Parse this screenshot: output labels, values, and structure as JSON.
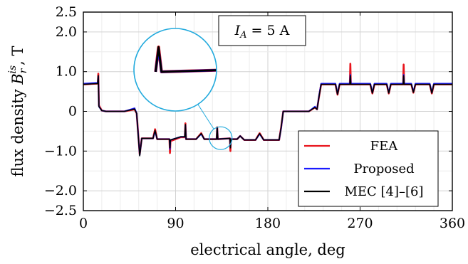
{
  "chart_data": {
    "type": "line",
    "xlabel": "electrical angle, deg",
    "ylabel": "flux density B_r^{is}, T",
    "ylabel_parts": {
      "main": "flux density ",
      "sym": "B",
      "sub": "r",
      "sup": "is",
      "tail": ", T"
    },
    "xlim": [
      0,
      360
    ],
    "ylim": [
      -2.5,
      2.5
    ],
    "xticks": [
      0,
      90,
      180,
      270,
      360
    ],
    "xtick_labels": [
      "0",
      "90",
      "180",
      "270",
      "360"
    ],
    "yticks": [
      2.5,
      2.0,
      1.0,
      0,
      -1.0,
      -2.0,
      -2.5
    ],
    "ytick_labels": [
      "2.5",
      "2.0",
      "1.0",
      "0",
      "−1.0",
      "−2.0",
      "−2.5"
    ],
    "grid": true,
    "legend_position": "bottom-right",
    "annotation": "I_A = 5 A",
    "annotation_parts": {
      "sym": "I",
      "sub": "A",
      "rest": " = 5 A"
    },
    "series": [
      {
        "name": "FEA",
        "color": "#e8141c",
        "points": [
          [
            0,
            0.68
          ],
          [
            14,
            0.7
          ],
          [
            14.6,
            0.95
          ],
          [
            15.2,
            0.15
          ],
          [
            18,
            0.02
          ],
          [
            22,
            0.0
          ],
          [
            40,
            0.0
          ],
          [
            50,
            0.05
          ],
          [
            52,
            -0.05
          ],
          [
            55,
            -1.08
          ],
          [
            57,
            -0.68
          ],
          [
            68,
            -0.68
          ],
          [
            70,
            -0.45
          ],
          [
            72,
            -0.7
          ],
          [
            84,
            -0.7
          ],
          [
            84.5,
            -1.05
          ],
          [
            85,
            -0.75
          ],
          [
            95,
            -0.65
          ],
          [
            99,
            -0.65
          ],
          [
            99.6,
            -0.3
          ],
          [
            100.2,
            -0.7
          ],
          [
            110,
            -0.7
          ],
          [
            115,
            -0.55
          ],
          [
            118,
            -0.7
          ],
          [
            130,
            -0.7
          ],
          [
            130.6,
            -0.4
          ],
          [
            131.2,
            -0.7
          ],
          [
            143,
            -0.68
          ],
          [
            143.5,
            -1.0
          ],
          [
            144,
            -0.7
          ],
          [
            150,
            -0.7
          ],
          [
            153,
            -0.62
          ],
          [
            157,
            -0.72
          ],
          [
            168,
            -0.72
          ],
          [
            172,
            -0.55
          ],
          [
            176,
            -0.72
          ],
          [
            185,
            -0.72
          ],
          [
            191,
            -0.72
          ],
          [
            193,
            -0.4
          ],
          [
            195,
            0.0
          ],
          [
            220,
            0.0
          ],
          [
            226,
            0.1
          ],
          [
            228,
            0.05
          ],
          [
            230,
            0.38
          ],
          [
            232,
            0.68
          ],
          [
            246,
            0.68
          ],
          [
            248,
            0.42
          ],
          [
            250,
            0.68
          ],
          [
            260,
            0.68
          ],
          [
            260.5,
            1.2
          ],
          [
            261,
            0.68
          ],
          [
            270,
            0.68
          ],
          [
            280,
            0.68
          ],
          [
            282,
            0.45
          ],
          [
            284,
            0.68
          ],
          [
            296,
            0.68
          ],
          [
            298,
            0.45
          ],
          [
            300,
            0.68
          ],
          [
            312,
            0.68
          ],
          [
            312.5,
            1.18
          ],
          [
            313,
            0.68
          ],
          [
            320,
            0.68
          ],
          [
            322,
            0.47
          ],
          [
            324,
            0.68
          ],
          [
            338,
            0.68
          ],
          [
            340,
            0.45
          ],
          [
            342,
            0.68
          ],
          [
            350,
            0.68
          ],
          [
            360,
            0.68
          ]
        ]
      },
      {
        "name": "Proposed",
        "color": "#1a1aff",
        "points": [
          [
            0,
            0.7
          ],
          [
            14,
            0.72
          ],
          [
            14.6,
            0.88
          ],
          [
            15.2,
            0.12
          ],
          [
            18,
            0.02
          ],
          [
            22,
            0.0
          ],
          [
            40,
            0.0
          ],
          [
            50,
            0.08
          ],
          [
            52,
            -0.05
          ],
          [
            55,
            -1.1
          ],
          [
            57,
            -0.68
          ],
          [
            68,
            -0.68
          ],
          [
            70,
            -0.5
          ],
          [
            72,
            -0.7
          ],
          [
            84,
            -0.7
          ],
          [
            84.5,
            -0.95
          ],
          [
            85,
            -0.72
          ],
          [
            95,
            -0.64
          ],
          [
            99,
            -0.64
          ],
          [
            99.6,
            -0.35
          ],
          [
            100.2,
            -0.7
          ],
          [
            110,
            -0.7
          ],
          [
            115,
            -0.57
          ],
          [
            118,
            -0.7
          ],
          [
            130,
            -0.7
          ],
          [
            130.6,
            -0.42
          ],
          [
            131.2,
            -0.7
          ],
          [
            143,
            -0.68
          ],
          [
            143.5,
            -0.9
          ],
          [
            144,
            -0.7
          ],
          [
            150,
            -0.7
          ],
          [
            153,
            -0.62
          ],
          [
            157,
            -0.72
          ],
          [
            168,
            -0.72
          ],
          [
            172,
            -0.57
          ],
          [
            176,
            -0.72
          ],
          [
            185,
            -0.72
          ],
          [
            191,
            -0.72
          ],
          [
            193,
            -0.42
          ],
          [
            195,
            0.0
          ],
          [
            220,
            0.0
          ],
          [
            226,
            0.12
          ],
          [
            228,
            0.05
          ],
          [
            230,
            0.4
          ],
          [
            232,
            0.7
          ],
          [
            246,
            0.7
          ],
          [
            248,
            0.44
          ],
          [
            250,
            0.7
          ],
          [
            260,
            0.7
          ],
          [
            260.5,
            0.92
          ],
          [
            261,
            0.7
          ],
          [
            270,
            0.7
          ],
          [
            280,
            0.7
          ],
          [
            282,
            0.47
          ],
          [
            284,
            0.7
          ],
          [
            296,
            0.7
          ],
          [
            298,
            0.47
          ],
          [
            300,
            0.7
          ],
          [
            312,
            0.7
          ],
          [
            312.5,
            0.92
          ],
          [
            313,
            0.7
          ],
          [
            320,
            0.7
          ],
          [
            322,
            0.49
          ],
          [
            324,
            0.7
          ],
          [
            338,
            0.7
          ],
          [
            340,
            0.47
          ],
          [
            342,
            0.7
          ],
          [
            350,
            0.7
          ],
          [
            360,
            0.7
          ]
        ]
      },
      {
        "name": "MEC [4]–[6]",
        "color": "#000000",
        "points": [
          [
            0,
            0.68
          ],
          [
            14,
            0.7
          ],
          [
            14.6,
            0.9
          ],
          [
            15.2,
            0.12
          ],
          [
            18,
            0.02
          ],
          [
            22,
            0.0
          ],
          [
            40,
            0.0
          ],
          [
            50,
            0.06
          ],
          [
            52,
            -0.05
          ],
          [
            55,
            -1.12
          ],
          [
            57,
            -0.68
          ],
          [
            68,
            -0.68
          ],
          [
            70,
            -0.48
          ],
          [
            72,
            -0.7
          ],
          [
            84,
            -0.7
          ],
          [
            84.5,
            -0.92
          ],
          [
            85,
            -0.72
          ],
          [
            95,
            -0.64
          ],
          [
            99,
            -0.64
          ],
          [
            99.6,
            -0.33
          ],
          [
            100.2,
            -0.7
          ],
          [
            110,
            -0.7
          ],
          [
            115,
            -0.56
          ],
          [
            118,
            -0.7
          ],
          [
            130,
            -0.7
          ],
          [
            130.6,
            -0.4
          ],
          [
            131.2,
            -0.7
          ],
          [
            143,
            -0.68
          ],
          [
            143.5,
            -0.92
          ],
          [
            144,
            -0.7
          ],
          [
            150,
            -0.7
          ],
          [
            153,
            -0.62
          ],
          [
            157,
            -0.72
          ],
          [
            168,
            -0.72
          ],
          [
            172,
            -0.56
          ],
          [
            176,
            -0.72
          ],
          [
            185,
            -0.72
          ],
          [
            191,
            -0.72
          ],
          [
            193,
            -0.4
          ],
          [
            195,
            0.0
          ],
          [
            220,
            0.0
          ],
          [
            226,
            0.1
          ],
          [
            228,
            0.05
          ],
          [
            230,
            0.38
          ],
          [
            232,
            0.68
          ],
          [
            246,
            0.68
          ],
          [
            248,
            0.43
          ],
          [
            250,
            0.68
          ],
          [
            260,
            0.68
          ],
          [
            260.5,
            0.9
          ],
          [
            261,
            0.68
          ],
          [
            270,
            0.68
          ],
          [
            280,
            0.68
          ],
          [
            282,
            0.46
          ],
          [
            284,
            0.68
          ],
          [
            296,
            0.68
          ],
          [
            298,
            0.46
          ],
          [
            300,
            0.68
          ],
          [
            312,
            0.68
          ],
          [
            312.5,
            0.9
          ],
          [
            313,
            0.68
          ],
          [
            320,
            0.68
          ],
          [
            322,
            0.48
          ],
          [
            324,
            0.68
          ],
          [
            338,
            0.68
          ],
          [
            340,
            0.46
          ],
          [
            342,
            0.68
          ],
          [
            350,
            0.68
          ],
          [
            360,
            0.68
          ]
        ]
      }
    ],
    "zoom": {
      "x_range": [
        126,
        142
      ],
      "y_range": [
        -1.15,
        -0.2
      ]
    }
  }
}
